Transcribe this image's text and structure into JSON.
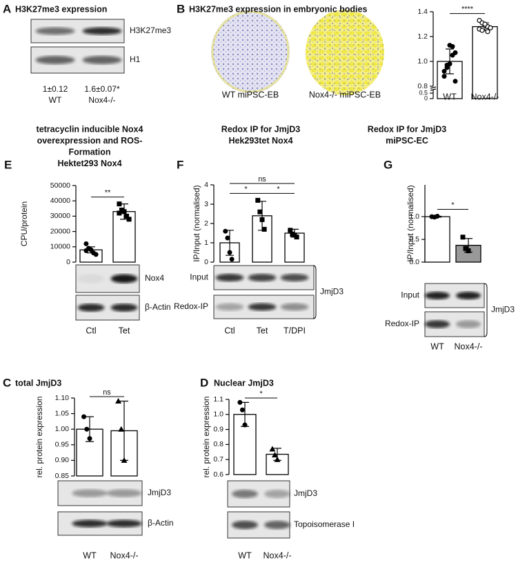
{
  "chart_data": [
    {
      "type": "blot",
      "panel": "A",
      "title": [
        "H3K27me3 expression"
      ],
      "categories": [
        "WT",
        "Nox4-/-"
      ],
      "quantification": [
        "1±0.12",
        "1.6±0.07*"
      ],
      "blot_labels": [
        "H3K27me3",
        "H1"
      ]
    },
    {
      "type": "bar",
      "panel": "B",
      "title": [
        "H3K27me3 expression in embryonic bodies"
      ],
      "image_labels": [
        "WT miPSC-EB",
        "Nox4-/- miPSC-EB"
      ],
      "categories": [
        "WT",
        "Nox4-/-"
      ],
      "values": [
        1.0,
        1.28
      ],
      "errors": [
        0.1,
        0.03
      ],
      "points": [
        [
          0.92,
          0.95,
          0.98,
          1.05,
          1.07,
          0.88,
          0.97,
          1.13,
          1.12,
          0.84
        ],
        [
          1.33,
          1.31,
          1.29,
          1.28,
          1.27,
          1.26,
          1.25,
          1.3,
          1.24
        ]
      ],
      "markers": [
        "circle",
        "open-circle"
      ],
      "bar_colors": [
        "#ffffff",
        "#ffffff"
      ],
      "ylim": [
        0.8,
        1.4
      ],
      "yticks": [
        0.8,
        {
          "value": 1,
          "label": "1.0"
        },
        1.2,
        1.4
      ],
      "yticks_below_break": [
        0,
        0.5
      ],
      "significance": [
        {
          "label": "****",
          "pair": [
            "WT",
            "Nox4-/-"
          ]
        }
      ]
    },
    {
      "type": "bar",
      "panel": "E",
      "title": [
        "tetracyclin inducible Nox4",
        "overexpression and ROS-",
        "Formation",
        "Hektet293 Nox4"
      ],
      "ylabel": "CPU/protein",
      "categories": [
        "Ctl",
        "Tet"
      ],
      "values": [
        8000,
        33000
      ],
      "errors": [
        2000,
        5000
      ],
      "points": [
        [
          12000,
          9000,
          8000,
          6000,
          5000,
          7500
        ],
        [
          38000,
          34000,
          33000,
          30000,
          28000,
          32000
        ]
      ],
      "markers": [
        "circle",
        "square"
      ],
      "bar_colors": [
        "#ffffff",
        "#ffffff"
      ],
      "ylim": [
        0,
        50000
      ],
      "yticks": [
        0,
        10000,
        20000,
        30000,
        40000,
        50000
      ],
      "significance": [
        {
          "label": "**",
          "pair": [
            "Ctl",
            "Tet"
          ]
        }
      ],
      "blot_labels": [
        "Nox4",
        "β-Actin"
      ]
    },
    {
      "type": "bar",
      "panel": "F",
      "title": [
        "Redox IP for JmjD3",
        "Hek293tet Nox4"
      ],
      "ylabel": "IP/Input (normalised)",
      "categories": [
        "Ctl",
        "Tet",
        "T/DPI"
      ],
      "values": [
        1.0,
        2.4,
        1.5
      ],
      "errors": [
        0.65,
        0.75,
        0.2
      ],
      "points": [
        [
          1.6,
          1.25,
          0.5,
          0.15
        ],
        [
          3.2,
          2.6,
          2.2,
          1.7
        ],
        [
          1.65,
          1.45,
          1.4,
          1.3
        ]
      ],
      "markers": [
        "circle",
        "square",
        "square"
      ],
      "bar_colors": [
        "#ffffff",
        "#ffffff",
        "#ffffff"
      ],
      "ylim": [
        0,
        4
      ],
      "yticks": [
        0,
        1,
        2,
        3,
        4
      ],
      "significance": [
        {
          "label": "*",
          "pair": [
            "Ctl",
            "Tet"
          ]
        },
        {
          "label": "*",
          "pair": [
            "Tet",
            "T/DPI"
          ]
        },
        {
          "label": "ns",
          "pair": [
            "Ctl",
            "T/DPI"
          ]
        }
      ],
      "blot_labels": [
        "Input",
        "Redox-IP"
      ],
      "blot_group_label": "JmjD3"
    },
    {
      "type": "bar",
      "panel": "G",
      "title": [
        "Redox IP for JmjD3",
        "miPSC-EC"
      ],
      "ylabel": "IP/Input (normalised)",
      "categories": [
        "WT",
        "Nox4-/-"
      ],
      "values": [
        1.0,
        0.37
      ],
      "errors": [
        0.01,
        0.15
      ],
      "points": [
        [
          1.0,
          0.99,
          1.01
        ],
        [
          0.55,
          0.3,
          0.25
        ]
      ],
      "markers": [
        "circle",
        "square"
      ],
      "bar_colors": [
        "#ffffff",
        "#999999"
      ],
      "ylim": [
        0,
        1.7
      ],
      "yticks": [
        {
          "value": 0,
          "label": "0.0"
        },
        0.5,
        {
          "value": 1,
          "label": "1.0"
        }
      ],
      "significance": [
        {
          "label": "*",
          "pair": [
            "WT",
            "Nox4-/-"
          ]
        }
      ],
      "blot_labels": [
        "Input",
        "Redox-IP"
      ],
      "blot_group_label": "JmjD3"
    },
    {
      "type": "bar",
      "panel": "C",
      "title": [
        "total JmjD3"
      ],
      "ylabel": "rel. protein expression",
      "categories": [
        "WT",
        "Nox4-/-"
      ],
      "values": [
        1.0,
        0.995
      ],
      "errors": [
        0.04,
        0.095
      ],
      "points": [
        [
          1.04,
          1.0,
          0.97
        ],
        [
          1.09,
          1.0,
          0.9
        ]
      ],
      "markers": [
        "circle",
        "triangle"
      ],
      "bar_colors": [
        "#ffffff",
        "#ffffff"
      ],
      "ylim": [
        0.85,
        1.1
      ],
      "yticks": [
        0.85,
        {
          "value": 0.9,
          "label": "0.90"
        },
        0.95,
        {
          "value": 1,
          "label": "1.00"
        },
        1.05,
        {
          "value": 1.1,
          "label": "1.10"
        }
      ],
      "significance": [
        {
          "label": "ns",
          "pair": [
            "WT",
            "Nox4-/-"
          ]
        }
      ],
      "blot_labels": [
        "JmjD3",
        "β-Actin"
      ]
    },
    {
      "type": "bar",
      "panel": "D",
      "title": [
        "Nuclear JmjD3"
      ],
      "ylabel": "rel. protein expression",
      "categories": [
        "WT",
        "Nox4-/-"
      ],
      "values": [
        1.0,
        0.735
      ],
      "errors": [
        0.08,
        0.04
      ],
      "points": [
        [
          1.08,
          1.03,
          0.93
        ],
        [
          0.77,
          0.73,
          0.7
        ]
      ],
      "markers": [
        "circle",
        "triangle"
      ],
      "bar_colors": [
        "#ffffff",
        "#ffffff"
      ],
      "ylim": [
        0.6,
        1.1
      ],
      "yticks": [
        0.6,
        0.7,
        0.8,
        0.9,
        {
          "value": 1,
          "label": "1.0"
        },
        1.1
      ],
      "significance": [
        {
          "label": "*",
          "pair": [
            "WT",
            "Nox4-/-"
          ]
        }
      ],
      "blot_labels": [
        "JmjD3",
        "Topoisomerase I"
      ]
    }
  ]
}
